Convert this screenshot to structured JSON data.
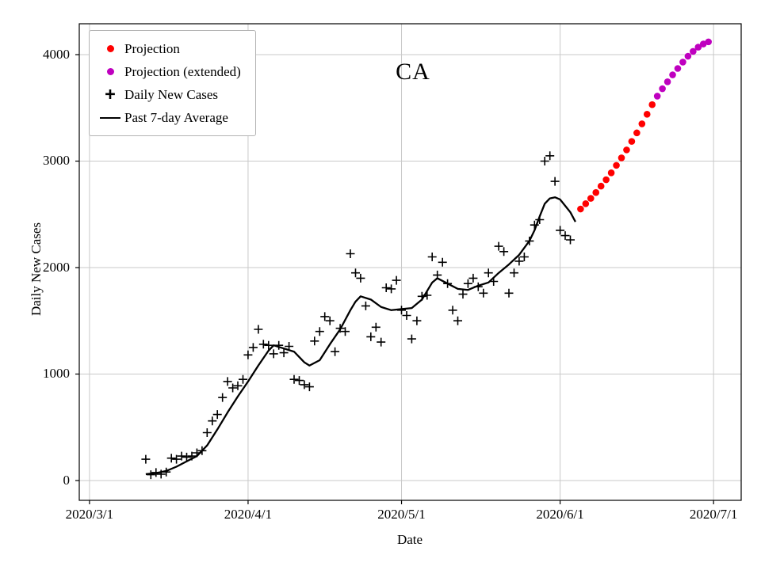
{
  "chart_data": {
    "type": "line",
    "title": "CA",
    "xlabel": "Date",
    "ylabel": "Daily New Cases",
    "grid": true,
    "grid_color": "#c9c9c9",
    "legend_position": "upper-left",
    "x_ticks": [
      {
        "day": 0,
        "label": "2020/3/1"
      },
      {
        "day": 31,
        "label": "2020/4/1"
      },
      {
        "day": 61,
        "label": "2020/5/1"
      },
      {
        "day": 92,
        "label": "2020/6/1"
      },
      {
        "day": 122,
        "label": "2020/7/1"
      }
    ],
    "y_ticks": [
      0,
      1000,
      2000,
      3000,
      4000
    ],
    "xlim_days": [
      -2,
      127.4
    ],
    "ylim": [
      -186,
      4290
    ],
    "series": [
      {
        "name": "Projection",
        "type": "scatter-dot",
        "color": "#ff0000",
        "days": [
          96,
          97,
          98,
          99,
          100,
          101,
          102,
          103,
          104,
          105,
          106,
          107,
          108,
          109,
          110
        ],
        "values": [
          2550,
          2600,
          2650,
          2705,
          2765,
          2825,
          2890,
          2960,
          3030,
          3105,
          3185,
          3265,
          3350,
          3440,
          3530
        ]
      },
      {
        "name": "Projection (extended)",
        "type": "scatter-dot",
        "color": "#bf00bf",
        "days": [
          111,
          112,
          113,
          114,
          115,
          116,
          117,
          118,
          119,
          120,
          121
        ],
        "values": [
          3610,
          3680,
          3745,
          3810,
          3870,
          3930,
          3985,
          4030,
          4070,
          4100,
          4120
        ]
      },
      {
        "name": "Daily New Cases",
        "type": "scatter-plus",
        "color": "#000000",
        "days": [
          11,
          12,
          13,
          14,
          15,
          16,
          17,
          18,
          19,
          20,
          21,
          22,
          23,
          24,
          25,
          26,
          27,
          28,
          29,
          30,
          31,
          32,
          33,
          34,
          35,
          36,
          37,
          38,
          39,
          40,
          41,
          42,
          43,
          44,
          45,
          46,
          47,
          48,
          49,
          50,
          51,
          52,
          53,
          54,
          55,
          56,
          57,
          58,
          59,
          60,
          61,
          62,
          63,
          64,
          65,
          66,
          67,
          68,
          69,
          70,
          71,
          72,
          73,
          74,
          75,
          76,
          77,
          78,
          79,
          80,
          81,
          82,
          83,
          84,
          85,
          86,
          87,
          88,
          89,
          90,
          91,
          92,
          93,
          94
        ],
        "values": [
          200,
          55,
          75,
          60,
          80,
          210,
          200,
          230,
          220,
          230,
          260,
          280,
          450,
          560,
          620,
          780,
          930,
          870,
          890,
          950,
          1180,
          1250,
          1420,
          1280,
          1270,
          1190,
          1270,
          1200,
          1260,
          950,
          940,
          900,
          880,
          1310,
          1400,
          1540,
          1500,
          1210,
          1430,
          1400,
          2130,
          1950,
          1900,
          1640,
          1350,
          1440,
          1300,
          1810,
          1800,
          1880,
          1600,
          1550,
          1330,
          1500,
          1730,
          1740,
          2100,
          1930,
          2050,
          1850,
          1600,
          1500,
          1750,
          1850,
          1900,
          1820,
          1760,
          1950,
          1870,
          2200,
          2150,
          1760,
          1950,
          2060,
          2100,
          2250,
          2400,
          2450,
          3000,
          3050,
          2810,
          2350,
          2300,
          2260
        ]
      },
      {
        "name": "Past 7-day Average",
        "type": "line",
        "color": "#000000",
        "days": [
          11,
          13,
          15,
          17,
          19,
          21,
          23,
          25,
          27,
          29,
          31,
          33,
          35,
          36,
          38,
          40,
          42,
          43,
          45,
          47,
          49,
          51,
          52,
          53,
          55,
          57,
          59,
          61,
          63,
          65,
          67,
          68,
          70,
          72,
          74,
          76,
          78,
          80,
          82,
          84,
          86,
          87,
          88,
          89,
          90,
          91,
          92,
          93,
          94,
          95
        ],
        "values": [
          60,
          70,
          90,
          130,
          180,
          230,
          330,
          480,
          640,
          790,
          930,
          1080,
          1220,
          1270,
          1240,
          1210,
          1110,
          1080,
          1130,
          1280,
          1420,
          1600,
          1680,
          1730,
          1700,
          1630,
          1600,
          1610,
          1620,
          1700,
          1860,
          1900,
          1850,
          1800,
          1790,
          1830,
          1860,
          1950,
          2030,
          2120,
          2250,
          2350,
          2480,
          2600,
          2650,
          2660,
          2640,
          2580,
          2520,
          2430
        ]
      }
    ]
  }
}
